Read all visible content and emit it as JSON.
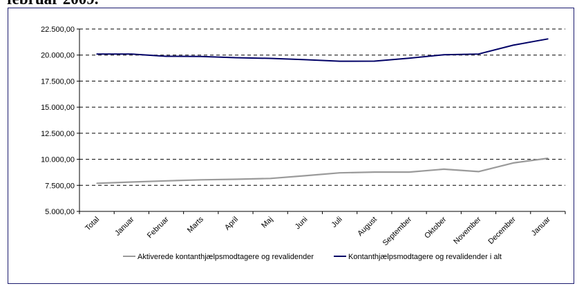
{
  "header": {
    "clipped_title": "februar 2009."
  },
  "chart_data": {
    "type": "line",
    "categories": [
      "Total",
      "Januar",
      "Februar",
      "Marts",
      "April",
      "Maj",
      "Juni",
      "Juli",
      "August",
      "September",
      "Oktober",
      "November",
      "December",
      "Januar"
    ],
    "series": [
      {
        "name": "Aktiverede kontanthjælpsmodtagere og revalidender",
        "color": "#9a9a9a",
        "values": [
          7700,
          7820,
          7930,
          8030,
          8080,
          8160,
          8420,
          8700,
          8770,
          8770,
          9050,
          8820,
          9650,
          10100
        ]
      },
      {
        "name": "Kontanthjælpsmodtagere og revalidender i alt",
        "color": "#000066",
        "values": [
          20100,
          20100,
          19880,
          19870,
          19750,
          19680,
          19560,
          19410,
          19420,
          19700,
          20030,
          20100,
          20950,
          21550
        ]
      }
    ],
    "yticks": [
      "5.000,00",
      "7.500,00",
      "10.000,00",
      "12.500,00",
      "15.000,00",
      "17.500,00",
      "20.000,00",
      "22.500,00"
    ],
    "ylim": [
      5000,
      22500
    ],
    "grid": "dashed horizontal",
    "legend_position": "bottom"
  }
}
